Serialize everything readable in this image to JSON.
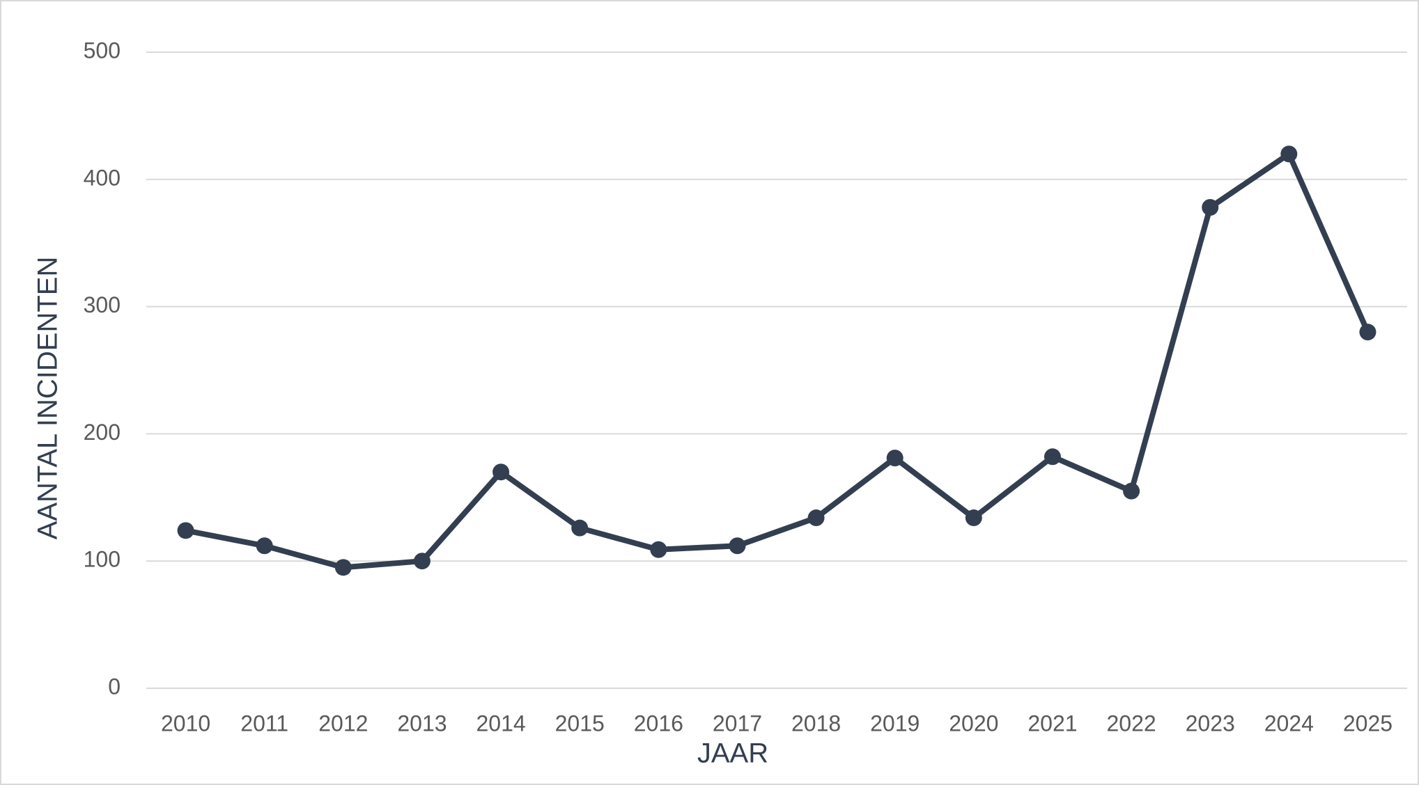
{
  "chart_data": {
    "type": "line",
    "x_label": "JAAR",
    "y_label": "AANTAL INCIDENTEN",
    "categories": [
      "2010",
      "2011",
      "2012",
      "2013",
      "2014",
      "2015",
      "2016",
      "2017",
      "2018",
      "2019",
      "2020",
      "2021",
      "2022",
      "2023",
      "2024",
      "2025"
    ],
    "values": [
      124,
      112,
      95,
      100,
      170,
      126,
      109,
      112,
      134,
      181,
      134,
      182,
      155,
      378,
      420,
      280
    ],
    "color": "#333f50",
    "ylim": [
      0,
      500
    ],
    "yticks": [
      0,
      100,
      200,
      300,
      400,
      500
    ],
    "grid": true
  }
}
